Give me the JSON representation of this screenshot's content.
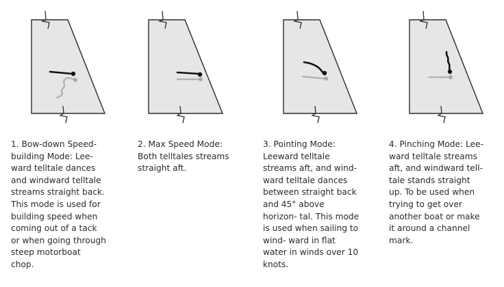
{
  "panels": [
    {
      "id": "bow-down",
      "caption": "1. Bow-down Speed-\nbuilding Mode: Lee-\nward telltale dances\nand windward telltale\nstreams straight back.\nThis mode is used for\nbuilding speed when\ncoming out of a tack\nor when going through\nsteep motorboat\nchop."
    },
    {
      "id": "max-speed",
      "caption": "2. Max Speed Mode:\nBoth telltales streams\nstraight aft."
    },
    {
      "id": "pointing",
      "caption": "3. Pointing Mode:\nLeeward telltale\nstreams aft, and wind-\nward telltale dances\nbetween straight back\nand 45° above\nhorizon- tal. This mode\nis used when sailing to\nwind- ward in flat\nwater in winds over 10\nknots."
    },
    {
      "id": "pinching",
      "caption": "4. Pinching Mode: Lee-\nward telltale streams\naft, and windward tell-\ntale stands straight\nup. To be used when\ntrying to get over\nanother boat or make\nit around a channel\nmark."
    }
  ],
  "colors": {
    "sail_fill": "#e6e6e6",
    "outline": "#2b2b2b",
    "leeward_telltale": "#111111",
    "windward_telltale": "#b3b3b3"
  }
}
